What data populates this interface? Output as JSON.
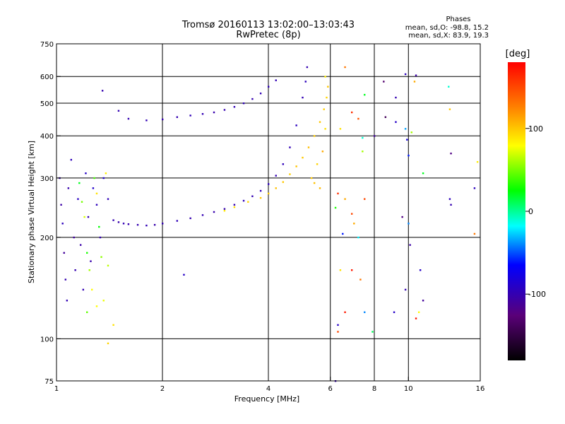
{
  "chart_data": {
    "type": "scatter",
    "title": "Tromsø 20160113 13:02:00–13:03:43",
    "subtitle": "RwPretec (8p)",
    "xlabel": "Frequency [MHz]",
    "ylabel": "Stationary phase Virtual Height [km]",
    "x_scale": "log",
    "y_scale": "log",
    "xlim": [
      1,
      16
    ],
    "ylim": [
      75,
      750
    ],
    "x_ticks": [
      1,
      2,
      4,
      6,
      8,
      10,
      16
    ],
    "x_tick_labels": [
      "1",
      "2",
      "4",
      "6",
      "8",
      "10",
      "16"
    ],
    "y_ticks": [
      75,
      100,
      200,
      300,
      400,
      500,
      600,
      750
    ],
    "y_tick_labels": [
      "75",
      "100",
      "200",
      "300",
      "400",
      "500",
      "600",
      "750"
    ],
    "grid_x": [
      2,
      4,
      6,
      8,
      10,
      16
    ],
    "grid_y": [
      100,
      200,
      300,
      400,
      500,
      600
    ],
    "grid": true,
    "phases_header": "Phases",
    "phases_lines": [
      "mean, sd,O: -98.8, 15.2",
      "mean, sd,X:  83.9, 19.3"
    ],
    "colorbar": {
      "label": "[deg]",
      "range": [
        -180,
        180
      ],
      "ticks": [
        100,
        0,
        -100
      ],
      "tick_labels": [
        "100",
        "0",
        "-100"
      ],
      "colors": [
        "#000000",
        "#5a0078",
        "#0000ff",
        "#00ffff",
        "#00ff00",
        "#ffff00",
        "#ff8000",
        "#ff0000"
      ]
    },
    "series": [
      {
        "points": [
          [
            1.02,
            300,
            -100
          ],
          [
            1.03,
            250,
            -105
          ],
          [
            1.04,
            220,
            -95
          ],
          [
            1.05,
            180,
            -110
          ],
          [
            1.06,
            150,
            -100
          ],
          [
            1.07,
            130,
            -98
          ],
          [
            1.08,
            280,
            -102
          ],
          [
            1.1,
            340,
            -96
          ],
          [
            1.12,
            200,
            -108
          ],
          [
            1.13,
            160,
            -100
          ],
          [
            1.15,
            260,
            -92
          ],
          [
            1.17,
            190,
            -104
          ],
          [
            1.19,
            140,
            -99
          ],
          [
            1.21,
            310,
            -90
          ],
          [
            1.23,
            230,
            -100
          ],
          [
            1.25,
            170,
            -103
          ],
          [
            1.27,
            280,
            -88
          ],
          [
            1.3,
            250,
            -95
          ],
          [
            1.33,
            200,
            -100
          ],
          [
            1.36,
            300,
            -85
          ],
          [
            1.4,
            260,
            -97
          ],
          [
            1.45,
            225,
            -100
          ],
          [
            1.5,
            222,
            -102
          ],
          [
            1.55,
            220,
            -99
          ],
          [
            1.6,
            219,
            -101
          ],
          [
            1.7,
            218,
            -100
          ],
          [
            1.8,
            217,
            -98
          ],
          [
            1.9,
            218,
            -103
          ],
          [
            2.0,
            220,
            -100
          ],
          [
            2.2,
            224,
            -97
          ],
          [
            2.4,
            228,
            -101
          ],
          [
            2.6,
            233,
            -99
          ],
          [
            2.8,
            238,
            -102
          ],
          [
            3.0,
            243,
            -98
          ],
          [
            3.2,
            250,
            -100
          ],
          [
            3.4,
            257,
            -96
          ],
          [
            3.6,
            265,
            -99
          ],
          [
            3.8,
            275,
            -97
          ],
          [
            4.0,
            288,
            -95
          ],
          [
            4.2,
            305,
            -100
          ],
          [
            4.4,
            330,
            -96
          ],
          [
            4.6,
            370,
            -98
          ],
          [
            4.8,
            430,
            -94
          ],
          [
            5.0,
            520,
            -99
          ],
          [
            5.1,
            580,
            -95
          ],
          [
            5.15,
            640,
            -100
          ],
          [
            1.5,
            475,
            -99
          ],
          [
            1.6,
            450,
            -100
          ],
          [
            1.8,
            445,
            -98
          ],
          [
            2.0,
            448,
            -101
          ],
          [
            2.2,
            455,
            -100
          ],
          [
            2.4,
            460,
            -97
          ],
          [
            2.6,
            465,
            -99
          ],
          [
            2.8,
            470,
            -102
          ],
          [
            3.0,
            478,
            -100
          ],
          [
            3.2,
            488,
            -98
          ],
          [
            3.4,
            500,
            -97
          ],
          [
            3.6,
            515,
            -100
          ],
          [
            3.8,
            535,
            -99
          ],
          [
            4.0,
            560,
            -96
          ],
          [
            4.2,
            585,
            -98
          ],
          [
            1.35,
            545,
            -100
          ],
          [
            2.3,
            155,
            -90
          ]
        ]
      },
      {
        "points": [
          [
            1.16,
            290,
            20
          ],
          [
            1.18,
            255,
            50
          ],
          [
            1.2,
            230,
            70
          ],
          [
            1.22,
            180,
            30
          ],
          [
            1.24,
            160,
            60
          ],
          [
            1.26,
            140,
            80
          ],
          [
            1.28,
            300,
            40
          ],
          [
            1.3,
            270,
            90
          ],
          [
            1.32,
            215,
            25
          ],
          [
            1.34,
            175,
            55
          ],
          [
            1.36,
            130,
            75
          ],
          [
            1.38,
            310,
            85
          ],
          [
            1.4,
            165,
            65
          ],
          [
            1.22,
            120,
            45
          ],
          [
            1.3,
            125,
            80
          ],
          [
            1.45,
            110,
            90
          ],
          [
            1.4,
            97,
            95
          ],
          [
            3.0,
            240,
            88
          ],
          [
            3.2,
            246,
            92
          ],
          [
            3.5,
            255,
            95
          ],
          [
            3.8,
            262,
            100
          ],
          [
            4.0,
            270,
            98
          ],
          [
            4.2,
            280,
            102
          ],
          [
            4.4,
            292,
            100
          ],
          [
            4.6,
            308,
            96
          ],
          [
            4.8,
            325,
            101
          ],
          [
            5.0,
            345,
            99
          ],
          [
            5.2,
            370,
            103
          ],
          [
            5.4,
            400,
            98
          ],
          [
            5.6,
            440,
            100
          ],
          [
            5.75,
            480,
            97
          ],
          [
            5.85,
            520,
            95
          ],
          [
            5.9,
            560,
            100
          ],
          [
            5.8,
            600,
            85
          ],
          [
            5.3,
            300,
            100
          ],
          [
            5.5,
            330,
            95
          ],
          [
            5.7,
            360,
            110
          ],
          [
            5.8,
            420,
            90
          ],
          [
            5.6,
            280,
            105
          ],
          [
            5.4,
            290,
            102
          ]
        ]
      },
      {
        "points": [
          [
            6.6,
            640,
            130
          ],
          [
            7.2,
            450,
            145
          ],
          [
            7.5,
            530,
            20
          ],
          [
            7.4,
            360,
            60
          ],
          [
            6.4,
            420,
            90
          ],
          [
            6.9,
            470,
            160
          ],
          [
            8.5,
            580,
            -130
          ],
          [
            9.2,
            520,
            -100
          ],
          [
            9.8,
            610,
            -95
          ],
          [
            10.5,
            605,
            -105
          ],
          [
            10.4,
            580,
            110
          ],
          [
            9.9,
            390,
            -80
          ],
          [
            13.0,
            560,
            -10
          ],
          [
            13.1,
            480,
            100
          ],
          [
            13.2,
            355,
            -120
          ],
          [
            15.4,
            280,
            -95
          ],
          [
            15.7,
            335,
            85
          ],
          [
            15.4,
            205,
            130
          ],
          [
            8.6,
            455,
            -140
          ],
          [
            9.2,
            440,
            -90
          ],
          [
            9.8,
            420,
            -35
          ],
          [
            10.0,
            350,
            -60
          ],
          [
            11.0,
            310,
            20
          ],
          [
            13.1,
            260,
            -95
          ],
          [
            13.2,
            250,
            -100
          ],
          [
            6.3,
            270,
            160
          ],
          [
            6.6,
            260,
            110
          ],
          [
            7.5,
            260,
            150
          ],
          [
            6.2,
            245,
            30
          ],
          [
            6.5,
            205,
            -60
          ],
          [
            6.9,
            160,
            170
          ],
          [
            6.4,
            160,
            90
          ],
          [
            7.3,
            150,
            130
          ],
          [
            6.6,
            120,
            170
          ],
          [
            7.5,
            120,
            -40
          ],
          [
            6.3,
            110,
            -90
          ],
          [
            6.3,
            105,
            150
          ],
          [
            7.9,
            105,
            10
          ],
          [
            9.8,
            140,
            -100
          ],
          [
            10.1,
            190,
            -105
          ],
          [
            10.8,
            160,
            -90
          ],
          [
            11.0,
            130,
            -110
          ],
          [
            10.7,
            120,
            80
          ],
          [
            10.5,
            115,
            170
          ],
          [
            6.2,
            75,
            -100
          ],
          [
            9.1,
            120,
            -90
          ],
          [
            7.4,
            395,
            -10
          ],
          [
            8.0,
            400,
            -110
          ],
          [
            10.2,
            410,
            60
          ],
          [
            6.9,
            235,
            150
          ],
          [
            7.0,
            220,
            110
          ],
          [
            9.6,
            230,
            -120
          ],
          [
            10.0,
            220,
            -40
          ],
          [
            7.2,
            200,
            -20
          ]
        ]
      }
    ]
  }
}
